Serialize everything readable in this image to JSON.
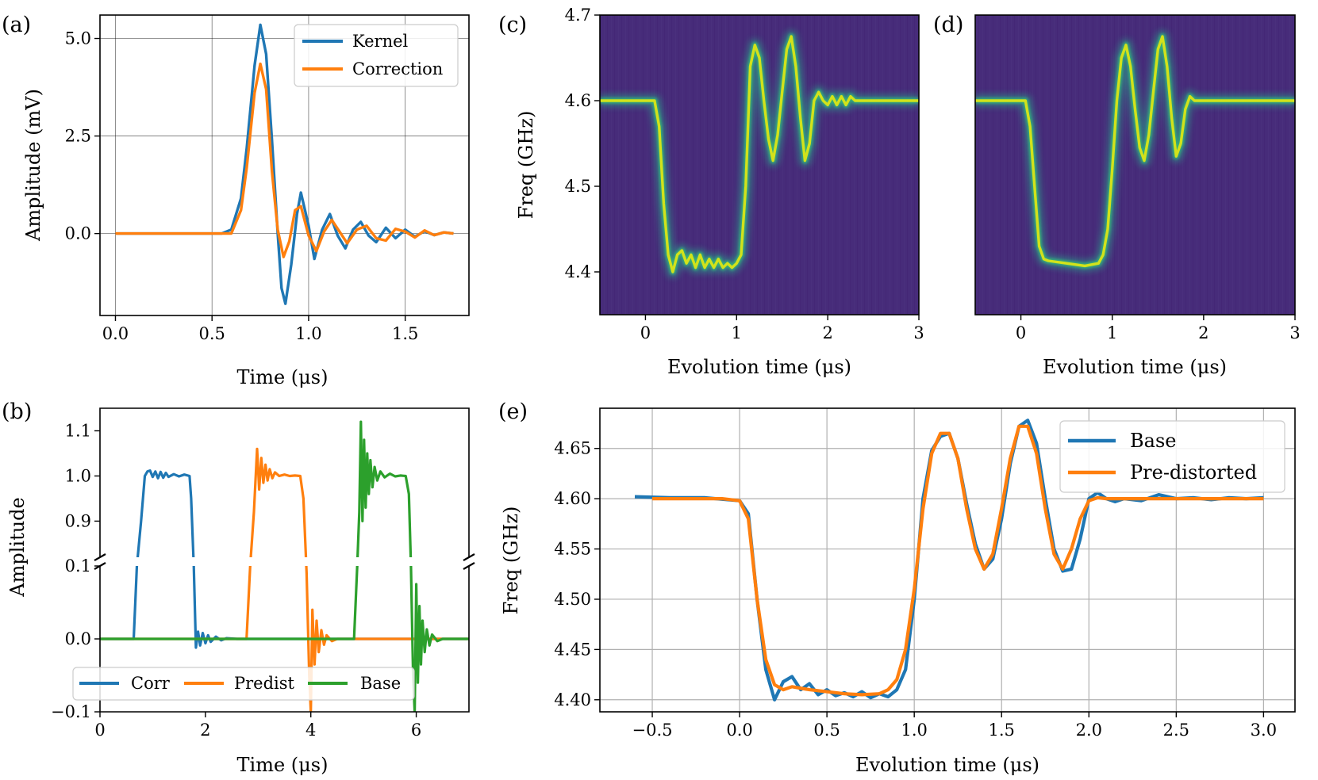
{
  "colors": {
    "c0": "#1f77b4",
    "c1": "#ff7f0e",
    "c2": "#2ca02c"
  },
  "chart_data": [
    {
      "panel": "(a)",
      "type": "line",
      "xlabel": "Time (μs)",
      "ylabel": "Amplitude (mV)",
      "xlim": [
        -0.08,
        1.83
      ],
      "ylim": [
        -2.1,
        5.6
      ],
      "xticks": [
        "0.0",
        "0.5",
        "1.0",
        "1.5"
      ],
      "yticks": [
        "0.0",
        "2.5",
        "5.0"
      ],
      "grid": true,
      "legend_position": "top-right",
      "series": [
        {
          "name": "Kernel",
          "color": "#1f77b4",
          "x": [
            0.0,
            0.55,
            0.6,
            0.65,
            0.68,
            0.72,
            0.75,
            0.78,
            0.81,
            0.84,
            0.86,
            0.88,
            0.91,
            0.94,
            0.96,
            1.0,
            1.03,
            1.07,
            1.11,
            1.15,
            1.19,
            1.23,
            1.27,
            1.31,
            1.35,
            1.4,
            1.45,
            1.5,
            1.55,
            1.6,
            1.65,
            1.7,
            1.75
          ],
          "y": [
            0.0,
            0.0,
            0.1,
            0.9,
            2.2,
            4.3,
            5.35,
            4.6,
            2.4,
            0.0,
            -1.4,
            -1.8,
            -0.8,
            0.5,
            1.05,
            0.2,
            -0.65,
            0.1,
            0.5,
            -0.05,
            -0.38,
            0.1,
            0.3,
            -0.05,
            -0.22,
            0.15,
            -0.12,
            0.1,
            -0.08,
            0.06,
            -0.04,
            0.03,
            0.0
          ]
        },
        {
          "name": "Correction",
          "color": "#ff7f0e",
          "x": [
            0.0,
            0.6,
            0.65,
            0.68,
            0.72,
            0.75,
            0.78,
            0.81,
            0.84,
            0.87,
            0.9,
            0.93,
            0.96,
            1.0,
            1.04,
            1.08,
            1.12,
            1.16,
            1.2,
            1.25,
            1.3,
            1.35,
            1.4,
            1.45,
            1.5,
            1.55,
            1.6,
            1.65,
            1.7,
            1.75
          ],
          "y": [
            0.0,
            0.0,
            0.6,
            1.7,
            3.6,
            4.35,
            3.7,
            1.6,
            0.1,
            -0.6,
            -0.2,
            0.6,
            0.7,
            -0.05,
            -0.45,
            0.05,
            0.35,
            0.05,
            -0.25,
            0.1,
            0.2,
            -0.12,
            -0.18,
            0.12,
            0.05,
            -0.1,
            0.08,
            -0.04,
            0.03,
            0.0
          ]
        }
      ]
    },
    {
      "panel": "(b)",
      "type": "line",
      "xlabel": "Time (μs)",
      "ylabel": "Amplitude",
      "xlim": [
        0,
        7
      ],
      "ylim_upper": [
        0.82,
        1.15
      ],
      "ylim_lower": [
        -0.1,
        0.1
      ],
      "broken_axis": true,
      "xticks": [
        "0",
        "2",
        "4",
        "6"
      ],
      "yticks_upper": [
        "0.9",
        "1.0",
        "1.1"
      ],
      "yticks_lower": [
        "−0.1",
        "0.0",
        "0.1"
      ],
      "legend_position": "bottom-center",
      "series": [
        {
          "name": "Corr",
          "color": "#1f77b4",
          "x": [
            0.0,
            0.64,
            0.7,
            0.78,
            0.85,
            0.9,
            0.95,
            1.0,
            1.05,
            1.1,
            1.15,
            1.2,
            1.25,
            1.3,
            1.4,
            1.5,
            1.6,
            1.7,
            1.73,
            1.78,
            1.82,
            1.86,
            1.9,
            1.95,
            2.0,
            2.05,
            2.1,
            2.2,
            2.3,
            2.4,
            2.6,
            3.0,
            7.0
          ],
          "y": [
            0.0,
            0.0,
            0.1,
            0.9,
            1.0,
            1.01,
            1.012,
            0.998,
            1.01,
            0.995,
            1.009,
            0.996,
            1.007,
            0.998,
            1.004,
            0.999,
            1.003,
            1.0,
            0.95,
            0.1,
            -0.012,
            0.01,
            -0.009,
            0.008,
            -0.006,
            0.005,
            -0.004,
            0.003,
            -0.002,
            0.001,
            0.0,
            0.0,
            0.0
          ]
        },
        {
          "name": "Predist",
          "color": "#ff7f0e",
          "x": [
            0.0,
            2.78,
            2.85,
            2.92,
            2.98,
            3.02,
            3.06,
            3.1,
            3.14,
            3.18,
            3.22,
            3.27,
            3.32,
            3.4,
            3.5,
            3.6,
            3.7,
            3.8,
            3.86,
            3.92,
            3.97,
            4.0,
            4.03,
            4.07,
            4.11,
            4.15,
            4.2,
            4.25,
            4.3,
            4.4,
            4.5,
            4.7,
            7.0
          ],
          "y": [
            0.0,
            0.0,
            0.1,
            0.92,
            1.06,
            0.97,
            1.04,
            0.985,
            1.025,
            0.99,
            1.015,
            0.995,
            1.008,
            1.0,
            1.003,
            1.0,
            1.001,
            1.0,
            0.95,
            0.09,
            -0.05,
            -0.1,
            0.04,
            -0.035,
            0.025,
            -0.018,
            0.012,
            -0.008,
            0.005,
            -0.003,
            0.0,
            0.0,
            0.0
          ]
        },
        {
          "name": "Base",
          "color": "#2ca02c",
          "x": [
            0.0,
            4.82,
            4.88,
            4.92,
            4.95,
            4.98,
            5.01,
            5.04,
            5.07,
            5.1,
            5.13,
            5.17,
            5.21,
            5.26,
            5.32,
            5.4,
            5.5,
            5.6,
            5.7,
            5.8,
            5.86,
            5.9,
            5.94,
            5.97,
            6.0,
            6.03,
            6.06,
            6.09,
            6.12,
            6.16,
            6.2,
            6.25,
            6.3,
            6.4,
            6.5,
            6.6,
            7.0
          ],
          "y": [
            0.0,
            0.0,
            0.1,
            0.92,
            1.12,
            0.9,
            1.08,
            0.93,
            1.05,
            0.96,
            1.035,
            0.975,
            1.02,
            0.99,
            1.01,
            0.997,
            1.005,
            0.999,
            1.001,
            1.0,
            0.96,
            0.1,
            -0.05,
            -0.12,
            0.075,
            -0.06,
            0.045,
            -0.035,
            0.025,
            -0.018,
            0.013,
            -0.009,
            0.006,
            -0.003,
            0.0,
            0.0,
            0.0
          ]
        }
      ]
    },
    {
      "panel": "(c)",
      "type": "heatmap",
      "xlabel": "Evolution time (μs)",
      "ylabel": "Freq (GHz)",
      "xlim": [
        -0.5,
        3.0
      ],
      "ylim": [
        4.35,
        4.7
      ],
      "xticks": [
        "0",
        "1",
        "2",
        "3"
      ],
      "yticks": [
        "4.4",
        "4.5",
        "4.6",
        "4.7"
      ],
      "background_color": "#472c7a",
      "peak_color": "#d2e21b",
      "ridge_x": [
        -0.5,
        0.1,
        0.15,
        0.2,
        0.25,
        0.3,
        0.35,
        0.4,
        0.45,
        0.5,
        0.55,
        0.6,
        0.65,
        0.7,
        0.75,
        0.8,
        0.85,
        0.9,
        0.95,
        1.0,
        1.05,
        1.1,
        1.15,
        1.2,
        1.25,
        1.3,
        1.35,
        1.4,
        1.45,
        1.5,
        1.55,
        1.6,
        1.65,
        1.7,
        1.75,
        1.8,
        1.85,
        1.9,
        1.95,
        2.0,
        2.05,
        2.1,
        2.15,
        2.2,
        2.25,
        2.3,
        2.35,
        2.4,
        2.5,
        2.6,
        2.7,
        3.0
      ],
      "ridge_y": [
        4.6,
        4.6,
        4.57,
        4.48,
        4.42,
        4.4,
        4.42,
        4.425,
        4.41,
        4.42,
        4.405,
        4.42,
        4.405,
        4.415,
        4.405,
        4.415,
        4.405,
        4.41,
        4.405,
        4.41,
        4.42,
        4.5,
        4.64,
        4.665,
        4.65,
        4.6,
        4.555,
        4.53,
        4.56,
        4.61,
        4.66,
        4.675,
        4.64,
        4.58,
        4.53,
        4.55,
        4.6,
        4.61,
        4.6,
        4.595,
        4.605,
        4.595,
        4.605,
        4.595,
        4.605,
        4.6,
        4.6,
        4.6,
        4.6,
        4.6,
        4.6,
        4.6
      ]
    },
    {
      "panel": "(d)",
      "type": "heatmap",
      "xlabel": "Evolution time (μs)",
      "xlim": [
        -0.5,
        3.0
      ],
      "ylim": [
        4.35,
        4.7
      ],
      "xticks": [
        "0",
        "1",
        "2",
        "3"
      ],
      "background_color": "#472c7a",
      "peak_color": "#d2e21b",
      "ridge_x": [
        -0.5,
        0.05,
        0.1,
        0.15,
        0.2,
        0.25,
        0.3,
        0.5,
        0.7,
        0.85,
        0.9,
        0.95,
        1.0,
        1.05,
        1.1,
        1.15,
        1.2,
        1.25,
        1.3,
        1.35,
        1.4,
        1.45,
        1.5,
        1.55,
        1.6,
        1.65,
        1.7,
        1.75,
        1.8,
        1.85,
        1.9,
        1.95,
        2.0,
        2.05,
        2.1,
        2.2,
        2.4,
        3.0
      ],
      "ridge_y": [
        4.6,
        4.6,
        4.57,
        4.5,
        4.43,
        4.415,
        4.413,
        4.41,
        4.407,
        4.41,
        4.42,
        4.45,
        4.52,
        4.6,
        4.65,
        4.665,
        4.64,
        4.59,
        4.545,
        4.53,
        4.56,
        4.61,
        4.66,
        4.675,
        4.64,
        4.58,
        4.535,
        4.55,
        4.59,
        4.605,
        4.6,
        4.6,
        4.6,
        4.6,
        4.6,
        4.6,
        4.6,
        4.6
      ]
    },
    {
      "panel": "(e)",
      "type": "line",
      "xlabel": "Evolution time (μs)",
      "ylabel": "Freq (GHz)",
      "xlim": [
        -0.8,
        3.18
      ],
      "ylim": [
        4.388,
        4.69
      ],
      "xticks": [
        "−0.5",
        "0.0",
        "0.5",
        "1.0",
        "1.5",
        "2.0",
        "2.5",
        "3.0"
      ],
      "yticks": [
        "4.40",
        "4.45",
        "4.50",
        "4.55",
        "4.60",
        "4.65"
      ],
      "grid": true,
      "legend_position": "top-right",
      "series": [
        {
          "name": "Base",
          "color": "#1f77b4",
          "x": [
            -0.6,
            -0.4,
            -0.2,
            0.0,
            0.05,
            0.1,
            0.15,
            0.2,
            0.25,
            0.3,
            0.35,
            0.4,
            0.45,
            0.5,
            0.55,
            0.6,
            0.65,
            0.7,
            0.75,
            0.8,
            0.85,
            0.9,
            0.95,
            1.0,
            1.05,
            1.1,
            1.15,
            1.2,
            1.25,
            1.3,
            1.35,
            1.4,
            1.45,
            1.5,
            1.55,
            1.6,
            1.65,
            1.7,
            1.75,
            1.8,
            1.85,
            1.9,
            1.95,
            2.0,
            2.05,
            2.1,
            2.15,
            2.2,
            2.3,
            2.4,
            2.5,
            2.6,
            2.7,
            2.8,
            2.9,
            3.0
          ],
          "y": [
            4.602,
            4.601,
            4.601,
            4.598,
            4.585,
            4.5,
            4.43,
            4.4,
            4.418,
            4.423,
            4.41,
            4.416,
            4.405,
            4.41,
            4.404,
            4.407,
            4.403,
            4.408,
            4.402,
            4.406,
            4.403,
            4.41,
            4.43,
            4.5,
            4.6,
            4.648,
            4.662,
            4.665,
            4.64,
            4.595,
            4.555,
            4.53,
            4.54,
            4.58,
            4.635,
            4.672,
            4.678,
            4.655,
            4.6,
            4.55,
            4.528,
            4.53,
            4.56,
            4.6,
            4.606,
            4.6,
            4.597,
            4.6,
            4.598,
            4.604,
            4.6,
            4.601,
            4.599,
            4.601,
            4.6,
            4.601
          ]
        },
        {
          "name": "Pre-distorted",
          "color": "#ff7f0e",
          "x": [
            -0.5,
            -0.3,
            -0.1,
            0.0,
            0.05,
            0.1,
            0.15,
            0.2,
            0.25,
            0.3,
            0.4,
            0.5,
            0.6,
            0.7,
            0.8,
            0.85,
            0.9,
            0.95,
            1.0,
            1.05,
            1.1,
            1.15,
            1.2,
            1.25,
            1.3,
            1.35,
            1.4,
            1.45,
            1.5,
            1.55,
            1.6,
            1.65,
            1.7,
            1.75,
            1.8,
            1.85,
            1.9,
            1.95,
            2.0,
            2.05,
            2.1,
            2.2,
            2.4,
            2.6,
            2.8,
            3.0
          ],
          "y": [
            4.6,
            4.6,
            4.6,
            4.598,
            4.58,
            4.5,
            4.44,
            4.415,
            4.41,
            4.413,
            4.41,
            4.408,
            4.406,
            4.405,
            4.406,
            4.41,
            4.42,
            4.45,
            4.51,
            4.59,
            4.645,
            4.665,
            4.665,
            4.64,
            4.59,
            4.55,
            4.53,
            4.545,
            4.59,
            4.64,
            4.672,
            4.672,
            4.645,
            4.59,
            4.545,
            4.53,
            4.55,
            4.58,
            4.598,
            4.601,
            4.6,
            4.6,
            4.6,
            4.6,
            4.6,
            4.6
          ]
        }
      ]
    }
  ]
}
